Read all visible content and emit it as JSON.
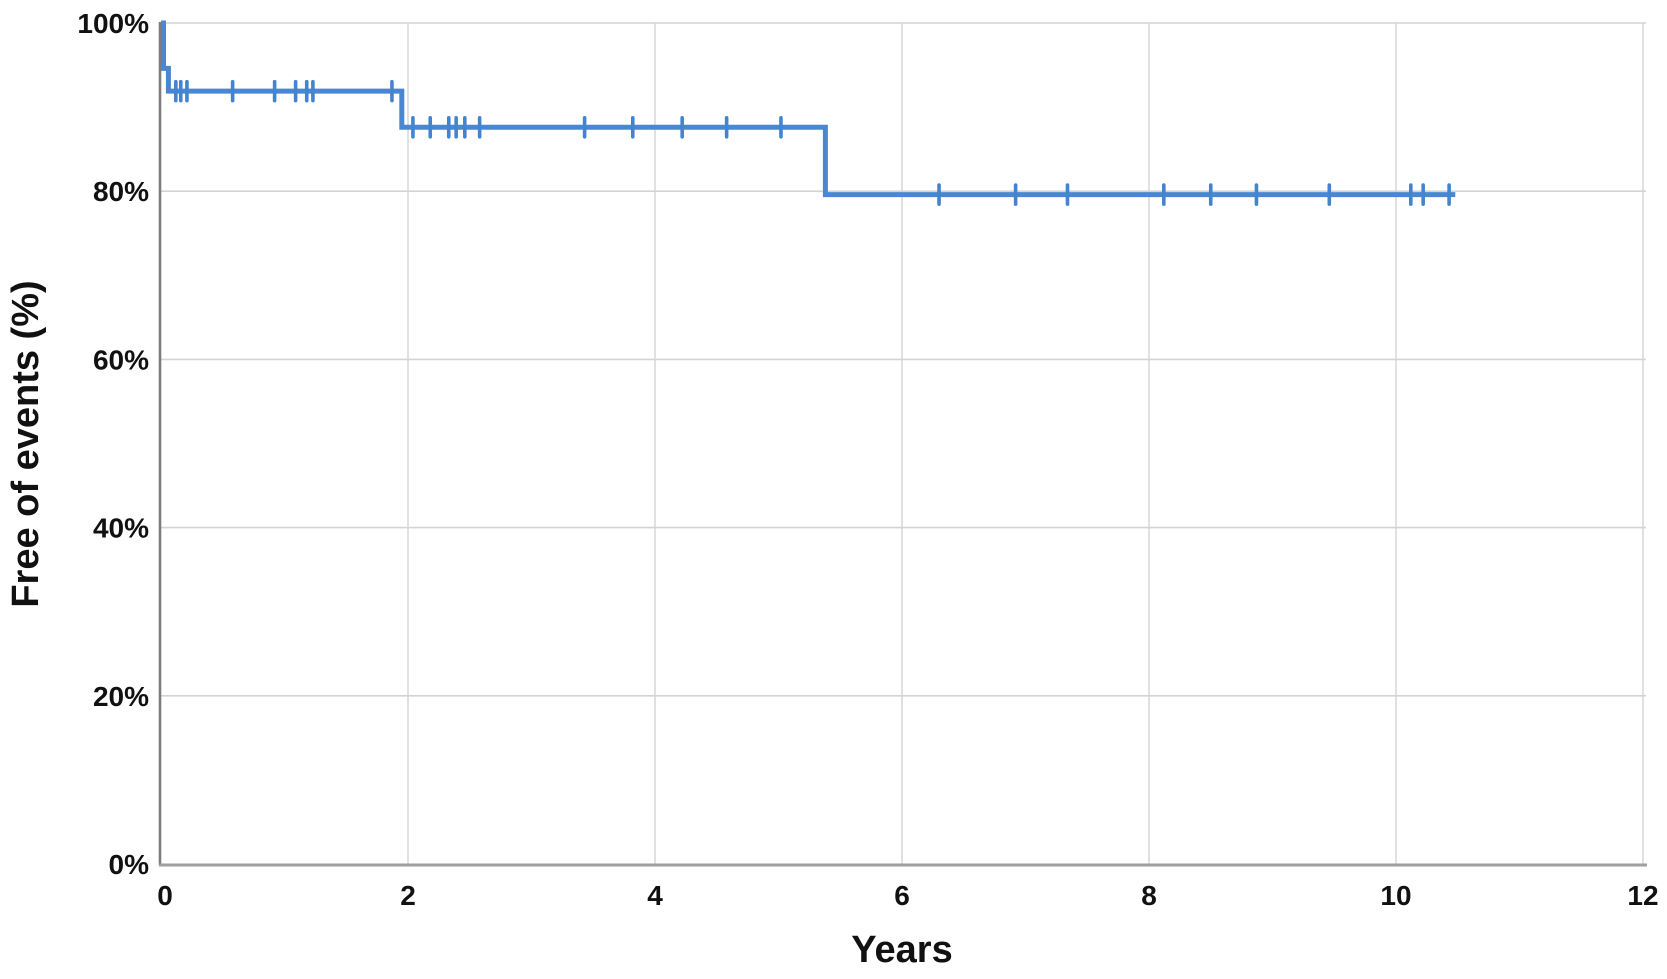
{
  "page": {
    "background": "#ffffff"
  },
  "chart_data": {
    "type": "line",
    "variant": "kaplan_meier_step_curve",
    "title": "",
    "xlabel": "Years",
    "ylabel": "Free of events (%)",
    "xlim": [
      0,
      12
    ],
    "ylim": [
      0,
      100
    ],
    "grid": true,
    "legend": false,
    "x_ticks": [
      0,
      2,
      4,
      6,
      8,
      10,
      12
    ],
    "x_tick_labels": [
      "0",
      "2",
      "4",
      "6",
      "8",
      "10",
      "12"
    ],
    "y_ticks": [
      0,
      20,
      40,
      60,
      80,
      100
    ],
    "y_tick_labels": [
      "0%",
      "20%",
      "40%",
      "60%",
      "80%",
      "100%"
    ],
    "series": [
      {
        "name": "Free of events",
        "color": "#4a87d1",
        "line_width": 5,
        "step_points": [
          [
            0,
            100
          ],
          [
            0.02,
            100
          ],
          [
            0.02,
            94.6
          ],
          [
            0.06,
            94.6
          ],
          [
            0.06,
            91.9
          ],
          [
            1.95,
            91.9
          ],
          [
            1.95,
            87.6
          ],
          [
            5.38,
            87.6
          ],
          [
            5.38,
            79.6
          ],
          [
            10.48,
            79.6
          ]
        ],
        "censor_marks": [
          {
            "t": 0.12,
            "p": 91.9
          },
          {
            "t": 0.16,
            "p": 91.9
          },
          {
            "t": 0.21,
            "p": 91.9
          },
          {
            "t": 0.58,
            "p": 91.9
          },
          {
            "t": 0.92,
            "p": 91.9
          },
          {
            "t": 1.09,
            "p": 91.9
          },
          {
            "t": 1.18,
            "p": 91.9
          },
          {
            "t": 1.23,
            "p": 91.9
          },
          {
            "t": 1.87,
            "p": 91.9
          },
          {
            "t": 2.04,
            "p": 87.6
          },
          {
            "t": 2.18,
            "p": 87.6
          },
          {
            "t": 2.33,
            "p": 87.6
          },
          {
            "t": 2.39,
            "p": 87.6
          },
          {
            "t": 2.46,
            "p": 87.6
          },
          {
            "t": 2.58,
            "p": 87.6
          },
          {
            "t": 3.43,
            "p": 87.6
          },
          {
            "t": 3.82,
            "p": 87.6
          },
          {
            "t": 4.22,
            "p": 87.6
          },
          {
            "t": 4.58,
            "p": 87.6
          },
          {
            "t": 5.02,
            "p": 87.6
          },
          {
            "t": 6.3,
            "p": 79.6
          },
          {
            "t": 6.92,
            "p": 79.6
          },
          {
            "t": 7.34,
            "p": 79.6
          },
          {
            "t": 8.12,
            "p": 79.6
          },
          {
            "t": 8.5,
            "p": 79.6
          },
          {
            "t": 8.87,
            "p": 79.6
          },
          {
            "t": 9.46,
            "p": 79.6
          },
          {
            "t": 10.12,
            "p": 79.6
          },
          {
            "t": 10.22,
            "p": 79.6
          },
          {
            "t": 10.43,
            "p": 79.6
          }
        ]
      }
    ],
    "colors": {
      "curve": "#4a87d1",
      "censor": "#4484cf",
      "grid": "#d4d4d4",
      "axis_x": "#9e9e9e",
      "axis_y": "#7d7d7d",
      "text": "#111111"
    }
  }
}
